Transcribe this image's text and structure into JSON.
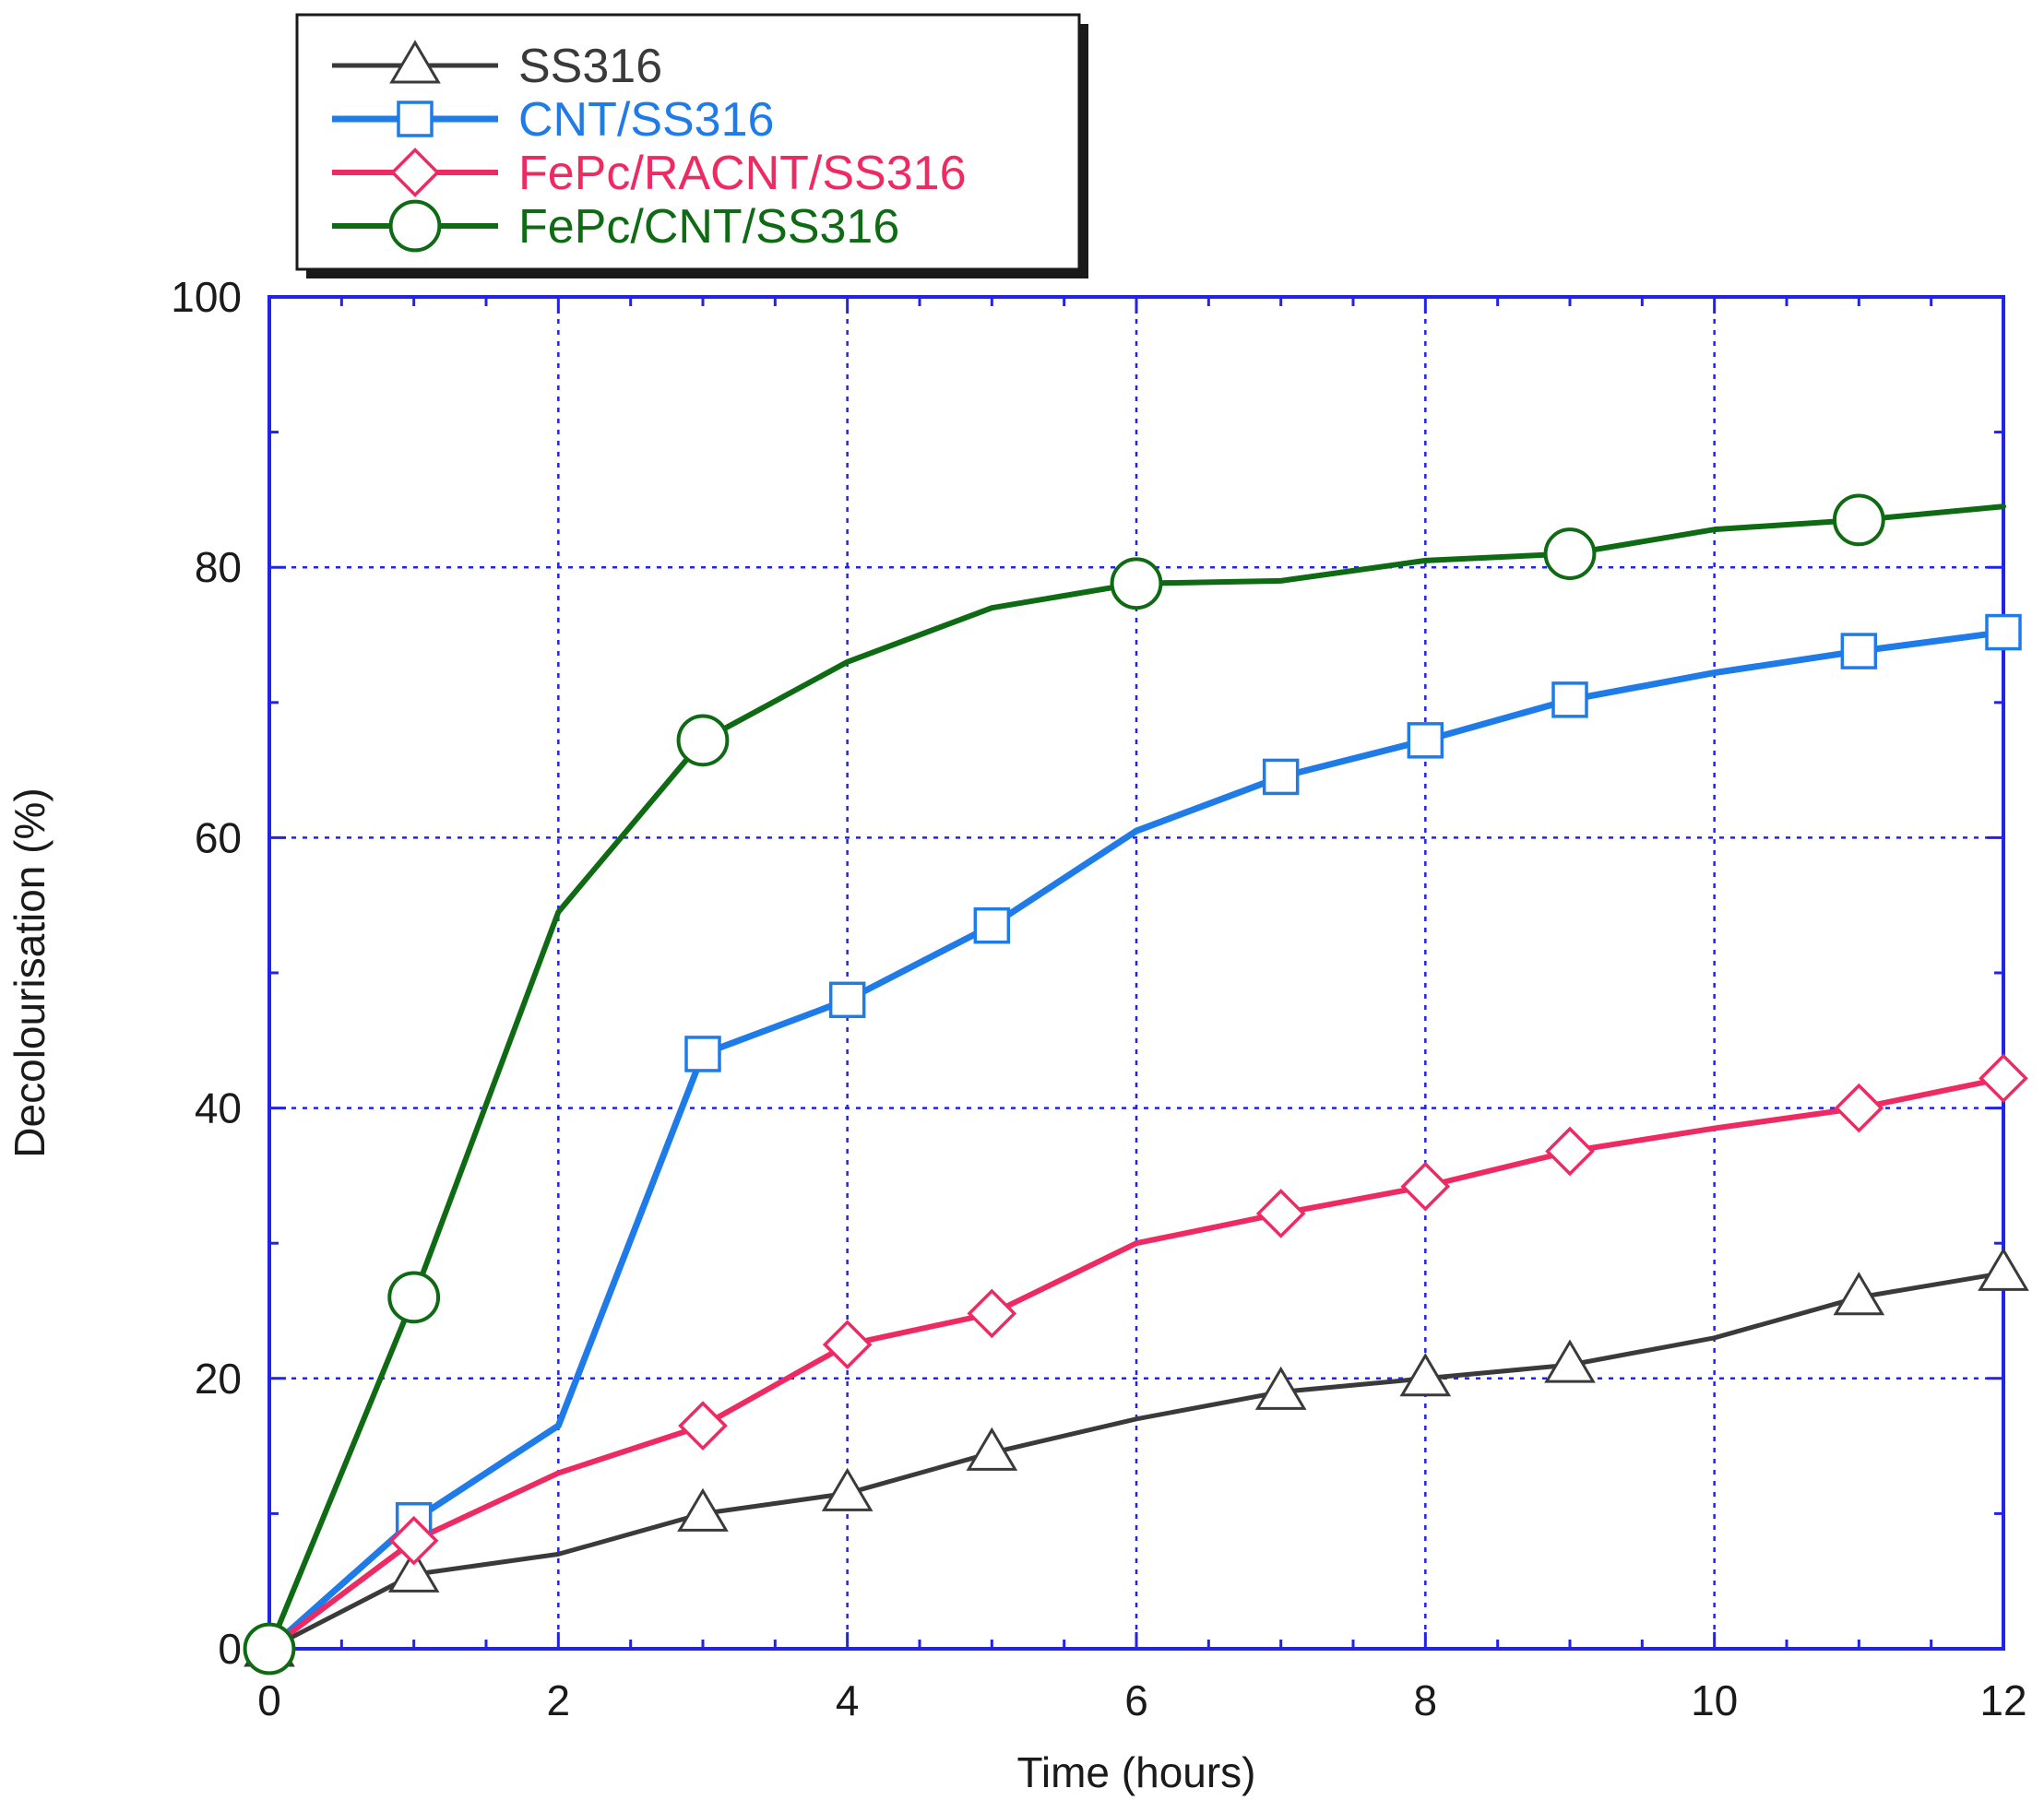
{
  "chart_data": {
    "type": "line",
    "title": "",
    "xlabel": "Time (hours)",
    "ylabel": "Decolourisation (%)",
    "xlim": [
      0,
      12
    ],
    "ylim": [
      0,
      100
    ],
    "xticks": [
      0,
      2,
      4,
      6,
      8,
      10,
      12
    ],
    "yticks": [
      0,
      20,
      40,
      60,
      80,
      100
    ],
    "grid": true,
    "legend_position": "top-left",
    "colors": {
      "axes_frame": "#2323e8",
      "grid": "#2323e8",
      "text": "#1a1a1a"
    },
    "series": [
      {
        "name": "SS316",
        "color": "#3a3a3a",
        "marker": "triangle",
        "x": [
          0,
          1,
          2,
          3,
          4,
          5,
          6,
          7,
          8,
          9,
          10,
          11,
          12
        ],
        "y": [
          0,
          5.5,
          7,
          10,
          11.5,
          14.5,
          17,
          19,
          20,
          21,
          23,
          26,
          27.8
        ],
        "marker_x": [
          0,
          1,
          3,
          4,
          5,
          7,
          8,
          9,
          11,
          12
        ]
      },
      {
        "name": "CNT/SS316",
        "color": "#1e7be8",
        "marker": "square",
        "x": [
          0,
          1,
          2,
          3,
          4,
          5,
          6,
          7,
          8,
          9,
          10,
          11,
          12
        ],
        "y": [
          0,
          9.5,
          16.5,
          44,
          48,
          53.5,
          60.5,
          64.5,
          67.2,
          70.2,
          72.2,
          73.8,
          75.2
        ],
        "marker_x": [
          0,
          1,
          3,
          4,
          5,
          7,
          8,
          9,
          11,
          12
        ]
      },
      {
        "name": "FePc/RACNT/SS316",
        "color": "#ee2a62",
        "marker": "diamond",
        "x": [
          0,
          1,
          2,
          3,
          4,
          5,
          6,
          7,
          8,
          9,
          10,
          11,
          12
        ],
        "y": [
          0,
          8,
          13,
          16.5,
          22.5,
          24.8,
          30,
          32.2,
          34.2,
          36.8,
          38.5,
          40,
          42.2
        ],
        "marker_x": [
          0,
          1,
          3,
          4,
          5,
          7,
          8,
          9,
          11,
          12
        ]
      },
      {
        "name": "FePc/CNT/SS316",
        "color": "#0f6a14",
        "marker": "circle",
        "x": [
          0,
          1,
          2,
          3,
          4,
          5,
          6,
          7,
          8,
          9,
          10,
          11,
          12
        ],
        "y": [
          0,
          26,
          54.5,
          67.2,
          73,
          77,
          78.8,
          79,
          80.5,
          81,
          82.8,
          83.5,
          84.5
        ],
        "marker_x": [
          0,
          1,
          3,
          6,
          9,
          11
        ]
      }
    ]
  }
}
